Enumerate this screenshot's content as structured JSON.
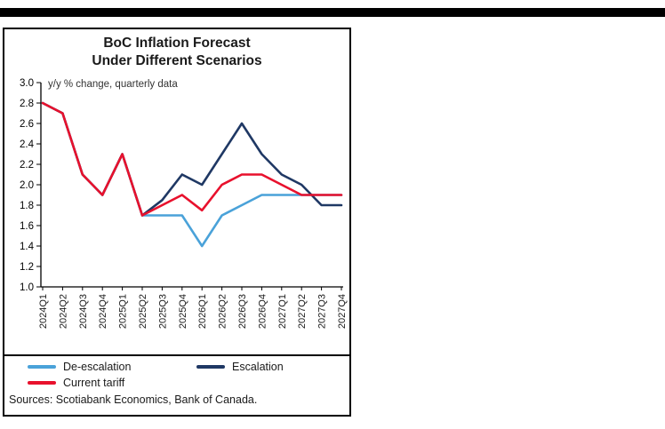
{
  "page": {
    "background": "#ffffff"
  },
  "top_bar": {
    "color": "#000000"
  },
  "chart_panel": {
    "title_line1": "BoC Inflation Forecast",
    "title_line2": "Under Different Scenarios",
    "sources": "Sources: Scotiabank Economics, Bank of Canada."
  },
  "chart_data": {
    "type": "line",
    "title": "BoC Inflation Forecast Under Different Scenarios",
    "subtitle": "y/y % change, quarterly data",
    "categories": [
      "2024Q1",
      "2024Q2",
      "2024Q3",
      "2024Q4",
      "2025Q1",
      "2025Q2",
      "2025Q3",
      "2025Q4",
      "2026Q1",
      "2026Q2",
      "2026Q3",
      "2026Q4",
      "2027Q1",
      "2027Q2",
      "2027Q3",
      "2027Q4"
    ],
    "ylim": [
      1.0,
      3.0
    ],
    "ytick_step": 0.2,
    "grid": false,
    "legend_position": "bottom",
    "axis_color": "#000000",
    "series": [
      {
        "name": "De-escalation",
        "color": "#4AA2D9",
        "values": [
          2.8,
          2.7,
          2.1,
          1.9,
          2.3,
          1.7,
          1.7,
          1.7,
          1.4,
          1.7,
          1.8,
          1.9,
          1.9,
          1.9,
          1.9,
          1.9
        ]
      },
      {
        "name": "Escalation",
        "color": "#1F3864",
        "values": [
          2.8,
          2.7,
          2.1,
          1.9,
          2.3,
          1.7,
          1.85,
          2.1,
          2.0,
          2.3,
          2.6,
          2.3,
          2.1,
          2.0,
          1.8,
          1.8
        ]
      },
      {
        "name": "Current tariff",
        "color": "#E8112D",
        "values": [
          2.8,
          2.7,
          2.1,
          1.9,
          2.3,
          1.7,
          1.8,
          1.9,
          1.75,
          2.0,
          2.1,
          2.1,
          2.0,
          1.9,
          1.9,
          1.9
        ]
      }
    ],
    "sources": "Sources: Scotiabank Economics, Bank of Canada."
  }
}
